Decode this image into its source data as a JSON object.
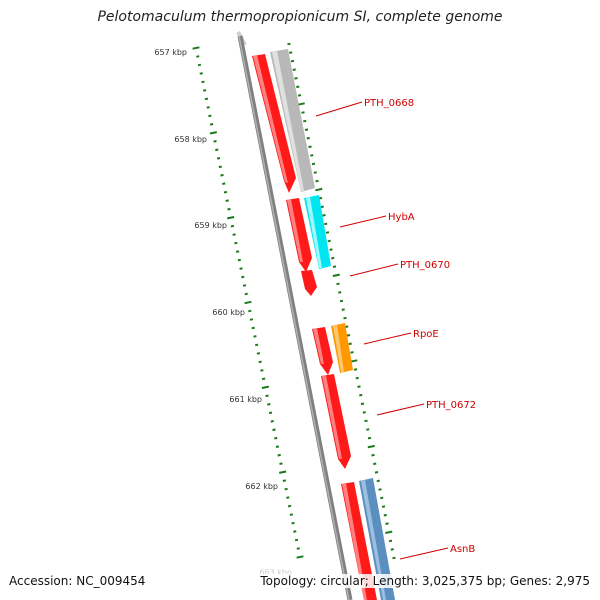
{
  "title": "Pelotomaculum thermopropionicum SI, complete genome",
  "accession_text": "Accession: NC_009454",
  "summary_text": "Topology: circular; Length: 3,025,375 bp; Genes: 2,975",
  "cut_off_label": "663 kbp",
  "colors": {
    "backbone": "#808080",
    "ticks": "#1a7a1a",
    "gene_red": "#ff0000",
    "gene_grey": "#b8b8b8",
    "gene_cyan": "#00e5f0",
    "gene_orange": "#ff9900",
    "gene_blue": "#5b8fc0",
    "label_red": "#d00000"
  },
  "scale_labels": [
    "657 kbp",
    "658 kbp",
    "659 kbp",
    "660 kbp",
    "661 kbp",
    "662 kbp"
  ],
  "genes": [
    {
      "name": "PTH_0668",
      "color": "gene_grey",
      "strand": "inner"
    },
    {
      "name": "HybA",
      "color": "gene_cyan",
      "strand": "inner"
    },
    {
      "name": "PTH_0670",
      "color": "",
      "strand": ""
    },
    {
      "name": "RpoE",
      "color": "gene_orange",
      "strand": "inner"
    },
    {
      "name": "PTH_0672",
      "color": "",
      "strand": ""
    },
    {
      "name": "AsnB",
      "color": "gene_blue",
      "strand": "inner"
    }
  ]
}
